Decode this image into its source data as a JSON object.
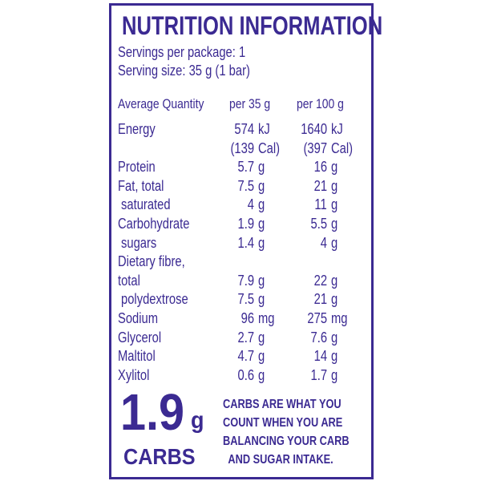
{
  "header": {
    "title": "NUTRITION INFORMATION",
    "servings": "Servings per package: 1",
    "serving_size": "Serving size: 35 g (1 bar)"
  },
  "table": {
    "columns": [
      "Average Quantity",
      "per 35 g",
      "per 100 g"
    ],
    "rows": [
      {
        "label": [
          "Energy"
        ],
        "per_serving": [
          {
            "amount": "574",
            "unit": "kJ"
          },
          {
            "amount": "(139",
            "unit": "Cal)"
          }
        ],
        "per_100g": [
          {
            "amount": "1640",
            "unit": "kJ"
          },
          {
            "amount": "(397",
            "unit": "Cal)"
          }
        ]
      },
      {
        "label": [
          "Protein"
        ],
        "per_serving": [
          {
            "amount": "5.7",
            "unit": "g"
          }
        ],
        "per_100g": [
          {
            "amount": "16",
            "unit": "g"
          }
        ]
      },
      {
        "label": [
          "Fat, total"
        ],
        "per_serving": [
          {
            "amount": "7.5",
            "unit": "g"
          }
        ],
        "per_100g": [
          {
            "amount": "21",
            "unit": "g"
          }
        ],
        "children": [
          {
            "label": [
              "saturated"
            ],
            "per_serving": [
              {
                "amount": "4",
                "unit": "g"
              }
            ],
            "per_100g": [
              {
                "amount": "11",
                "unit": "g"
              }
            ]
          }
        ]
      },
      {
        "label": [
          "Carbohydrate"
        ],
        "per_serving": [
          {
            "amount": "1.9",
            "unit": "g"
          }
        ],
        "per_100g": [
          {
            "amount": "5.5",
            "unit": "g"
          }
        ],
        "children": [
          {
            "label": [
              "sugars"
            ],
            "per_serving": [
              {
                "amount": "1.4",
                "unit": "g"
              }
            ],
            "per_100g": [
              {
                "amount": "4",
                "unit": "g"
              }
            ]
          }
        ]
      },
      {
        "label": [
          "Dietary fibre,",
          "total"
        ],
        "per_serving": [
          {
            "amount": "7.9",
            "unit": "g"
          }
        ],
        "per_100g": [
          {
            "amount": "22",
            "unit": "g"
          }
        ],
        "children": [
          {
            "label": [
              "polydextrose"
            ],
            "per_serving": [
              {
                "amount": "7.5",
                "unit": "g"
              }
            ],
            "per_100g": [
              {
                "amount": "21",
                "unit": "g"
              }
            ]
          }
        ]
      },
      {
        "label": [
          "Sodium"
        ],
        "per_serving": [
          {
            "amount": "96",
            "unit": "mg"
          }
        ],
        "per_100g": [
          {
            "amount": "275",
            "unit": "mg"
          }
        ]
      },
      {
        "label": [
          "Glycerol"
        ],
        "per_serving": [
          {
            "amount": "2.7",
            "unit": "g"
          }
        ],
        "per_100g": [
          {
            "amount": "7.6",
            "unit": "g"
          }
        ]
      },
      {
        "label": [
          "Maltitol"
        ],
        "per_serving": [
          {
            "amount": "4.7",
            "unit": "g"
          }
        ],
        "per_100g": [
          {
            "amount": "14",
            "unit": "g"
          }
        ]
      },
      {
        "label": [
          "Xylitol"
        ],
        "per_serving": [
          {
            "amount": "0.6",
            "unit": "g"
          }
        ],
        "per_100g": [
          {
            "amount": "1.7",
            "unit": "g"
          }
        ]
      }
    ]
  },
  "footer": {
    "amount": "1.9",
    "unit": "g",
    "label": "CARBS",
    "message": [
      "CARBS ARE WHAT YOU",
      "COUNT WHEN YOU ARE",
      "BALANCING YOUR CARB",
      "AND SUGAR INTAKE."
    ]
  }
}
